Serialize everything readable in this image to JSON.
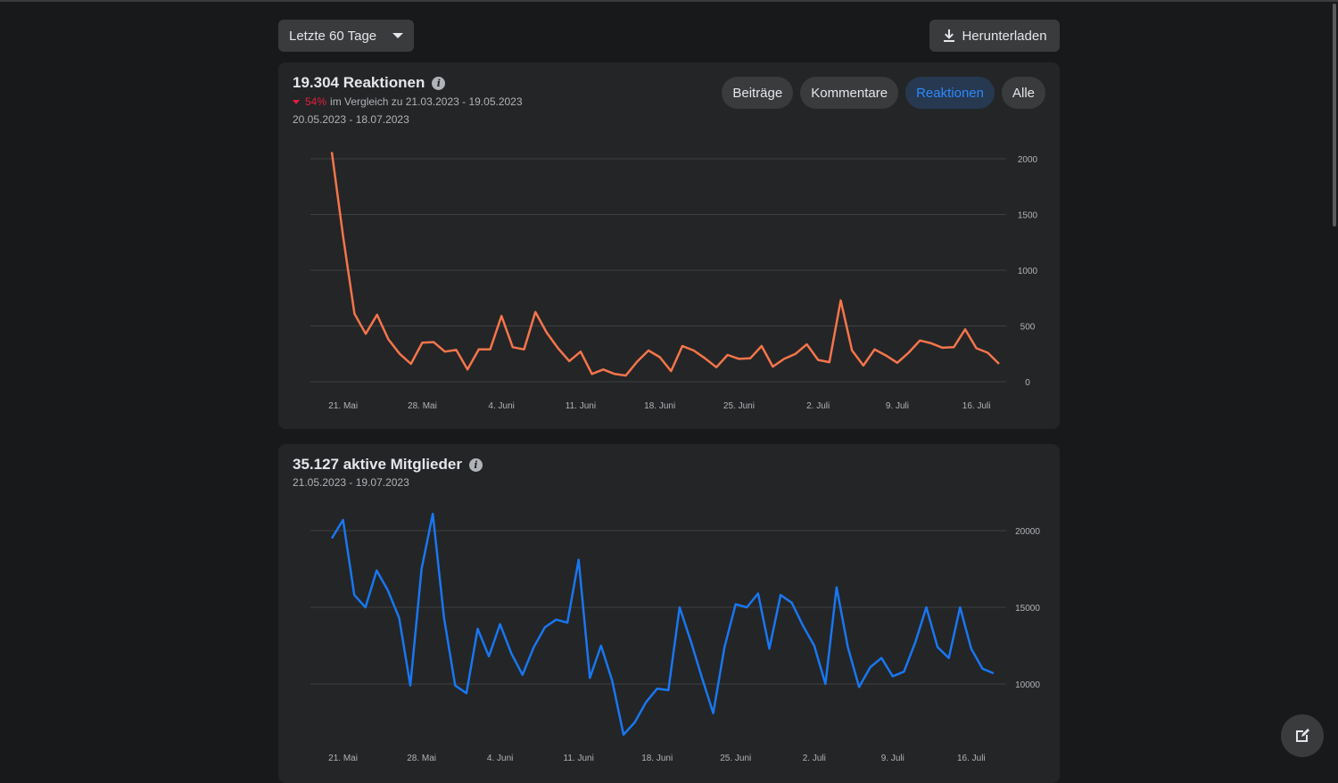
{
  "toolbar": {
    "range_label": "Letzte 60 Tage",
    "download_label": "Herunterladen"
  },
  "reactions_card": {
    "title": "19.304 Reaktionen",
    "change_pct": "54%",
    "compare_text": "im Vergleich zu 21.03.2023 - 19.05.2023",
    "date_range": "20.05.2023 - 18.07.2023",
    "filters": [
      "Beiträge",
      "Kommentare",
      "Reaktionen",
      "Alle"
    ],
    "active_filter": "Reaktionen",
    "line_color": "#f5754b"
  },
  "members_card": {
    "title": "35.127 aktive Mitglieder",
    "date_range": "21.05.2023 - 19.07.2023",
    "line_color": "#1877f2"
  },
  "chart_data": [
    {
      "type": "line",
      "x": [
        "20.05.",
        "21.05.",
        "22.05.",
        "23.05.",
        "24.05.",
        "25.05.",
        "26.05.",
        "27.05.",
        "28.05.",
        "29.05.",
        "30.05.",
        "31.05.",
        "01.06.",
        "02.06.",
        "03.06.",
        "04.06.",
        "05.06.",
        "06.06.",
        "07.06.",
        "08.06.",
        "09.06.",
        "10.06.",
        "11.06.",
        "12.06.",
        "13.06.",
        "14.06.",
        "15.06.",
        "16.06.",
        "17.06.",
        "18.06.",
        "19.06.",
        "20.06.",
        "21.06.",
        "22.06.",
        "23.06.",
        "24.06.",
        "25.06.",
        "26.06.",
        "27.06.",
        "28.06.",
        "29.06.",
        "30.06.",
        "01.07.",
        "02.07.",
        "03.07.",
        "04.07.",
        "05.07.",
        "06.07.",
        "07.07.",
        "08.07.",
        "09.07.",
        "10.07.",
        "11.07.",
        "12.07.",
        "13.07.",
        "14.07.",
        "15.07.",
        "16.07.",
        "17.07.",
        "18.07."
      ],
      "values": [
        2060,
        1300,
        610,
        430,
        600,
        380,
        250,
        160,
        350,
        355,
        270,
        285,
        110,
        290,
        290,
        590,
        310,
        290,
        625,
        440,
        300,
        185,
        270,
        70,
        110,
        70,
        55,
        180,
        280,
        220,
        95,
        320,
        280,
        210,
        130,
        240,
        205,
        210,
        320,
        135,
        205,
        250,
        335,
        195,
        175,
        730,
        280,
        145,
        290,
        235,
        170,
        260,
        370,
        345,
        305,
        310,
        470,
        300,
        260,
        160
      ],
      "x_ticks": [
        "21. Mai",
        "28. Mai",
        "4. Juni",
        "11. Juni",
        "18. Juni",
        "25. Juni",
        "2. Juli",
        "9. Juli",
        "16. Juli"
      ],
      "y_ticks": [
        "0",
        "500",
        "1000",
        "1500",
        "2000"
      ],
      "ylim": [
        0,
        2000
      ]
    },
    {
      "type": "line",
      "x": [
        "21.05.",
        "22.05.",
        "23.05.",
        "24.05.",
        "25.05.",
        "26.05.",
        "27.05.",
        "28.05.",
        "29.05.",
        "30.05.",
        "31.05.",
        "01.06.",
        "02.06.",
        "03.06.",
        "04.06.",
        "05.06.",
        "06.06.",
        "07.06.",
        "08.06.",
        "09.06.",
        "10.06.",
        "11.06.",
        "12.06.",
        "13.06.",
        "14.06.",
        "15.06.",
        "16.06.",
        "17.06.",
        "18.06.",
        "19.06.",
        "20.06.",
        "21.06.",
        "22.06.",
        "23.06.",
        "24.06.",
        "25.06.",
        "26.06.",
        "27.06.",
        "28.06.",
        "29.06.",
        "30.06.",
        "01.07.",
        "02.07.",
        "03.07.",
        "04.07.",
        "05.07.",
        "06.07.",
        "07.07.",
        "08.07.",
        "09.07.",
        "10.07.",
        "11.07.",
        "12.07.",
        "13.07.",
        "14.07.",
        "15.07.",
        "16.07.",
        "17.07.",
        "18.07.",
        "19.07."
      ],
      "values": [
        19500,
        20700,
        15800,
        15000,
        17400,
        16100,
        14300,
        9900,
        17500,
        21100,
        14300,
        9900,
        9400,
        13600,
        11800,
        13900,
        12000,
        10600,
        12400,
        13700,
        14200,
        14000,
        18100,
        10400,
        12500,
        10200,
        6700,
        7500,
        8800,
        9700,
        9600,
        15000,
        12800,
        10400,
        8100,
        12400,
        15200,
        15000,
        15900,
        12300,
        15800,
        15300,
        13800,
        12500,
        10000,
        16300,
        12400,
        9800,
        11100,
        11700,
        10500,
        10800,
        12700,
        15000,
        12400,
        11700,
        15000,
        12300,
        11000,
        10700
      ],
      "x_ticks": [
        "21. Mai",
        "28. Mai",
        "4. Juni",
        "11. Juni",
        "18. Juni",
        "25. Juni",
        "2. Juli",
        "9. Juli",
        "16. Juli"
      ],
      "y_ticks": [
        "10000",
        "15000",
        "20000"
      ],
      "ylim": [
        5000,
        21500
      ]
    }
  ]
}
